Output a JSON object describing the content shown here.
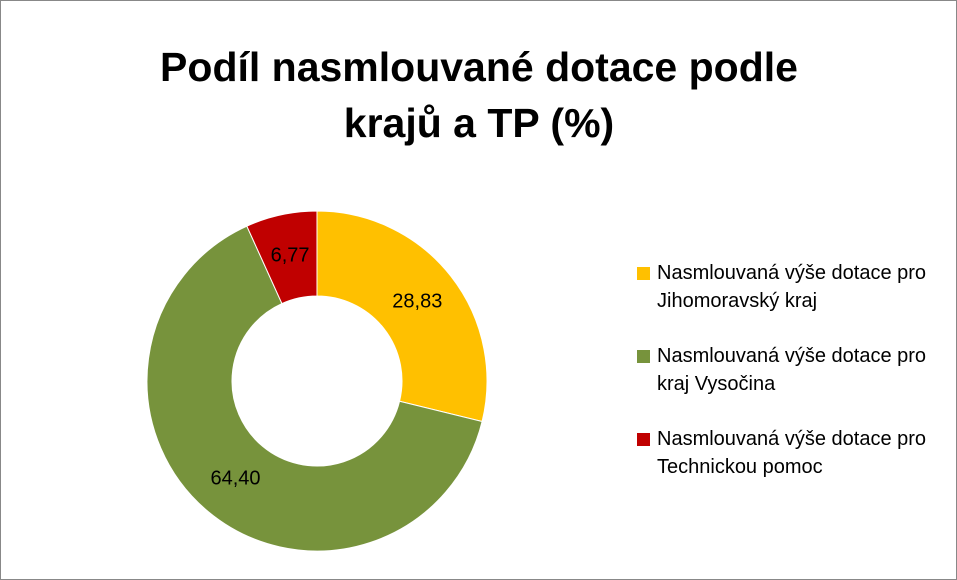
{
  "chart_data": {
    "type": "donut",
    "title": "Podíl nasmlouvané dotace podle krajů a TP (%)",
    "categories": [
      "Nasmlouvaná výše dotace pro Jihomoravský kraj",
      "Nasmlouvaná výše dotace pro kraj Vysočina",
      "Nasmlouvaná výše dotace pro Technickou pomoc"
    ],
    "values": [
      28.83,
      64.4,
      6.77
    ],
    "value_labels": [
      "28,83",
      "64,40",
      "6,77"
    ],
    "colors": [
      "#ffc000",
      "#77933c",
      "#c00000"
    ],
    "legend": "right"
  }
}
